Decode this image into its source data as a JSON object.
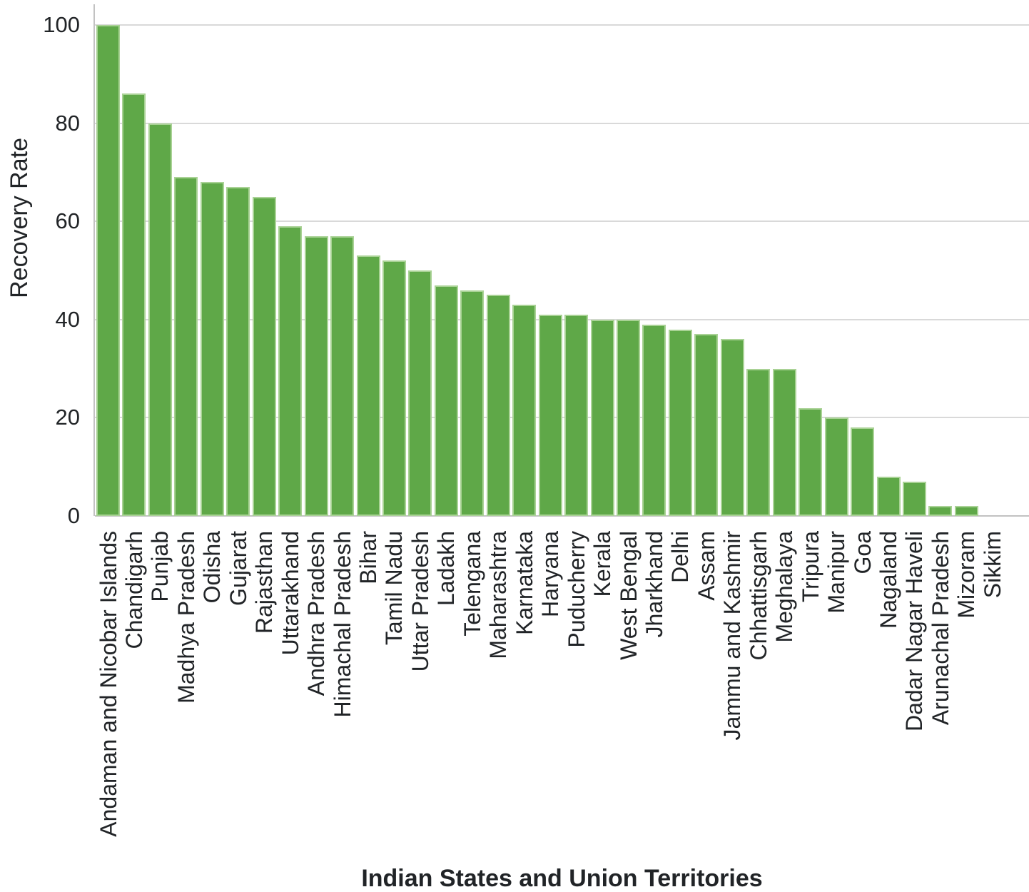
{
  "chart_data": {
    "type": "bar",
    "title": "",
    "xlabel": "Indian States and Union Territories",
    "ylabel": "Recovery Rate",
    "categories": [
      "Andaman and Nicobar Islands",
      "Chandigarh",
      "Punjab",
      "Madhya Pradesh",
      "Odisha",
      "Gujarat",
      "Rajasthan",
      "Uttarakhand",
      "Andhra Pradesh",
      "Himachal Pradesh",
      "Bihar",
      "Tamil Nadu",
      "Uttar Pradesh",
      "Ladakh",
      "Telengana",
      "Maharashtra",
      "Karnataka",
      "Haryana",
      "Puducherry",
      "Kerala",
      "West Bengal",
      "Jharkhand",
      "Delhi",
      "Assam",
      "Jammu and Kashmir",
      "Chhattisgarh",
      "Meghalaya",
      "Tripura",
      "Manipur",
      "Goa",
      "Nagaland",
      "Dadar Nagar Haveli",
      "Arunachal Pradesh",
      "Mizoram",
      "Sikkim"
    ],
    "values": [
      100,
      86,
      80,
      69,
      68,
      67,
      65,
      59,
      57,
      57,
      53,
      52,
      50,
      47,
      46,
      45,
      43,
      41,
      41,
      40,
      40,
      39,
      38,
      37,
      36,
      30,
      30,
      22,
      20,
      18,
      8,
      7,
      2,
      2,
      0
    ],
    "ylim": [
      0,
      100
    ],
    "yticks": [
      0,
      20,
      40,
      60,
      80,
      100
    ],
    "grid": "horizontal",
    "legend": "none",
    "colors": {
      "bar_fill": "#5FA848",
      "bar_border": "#A9D295",
      "gridline": "#D9D9D9",
      "axis_line": "#C2C2C2",
      "text": "#212427"
    }
  }
}
